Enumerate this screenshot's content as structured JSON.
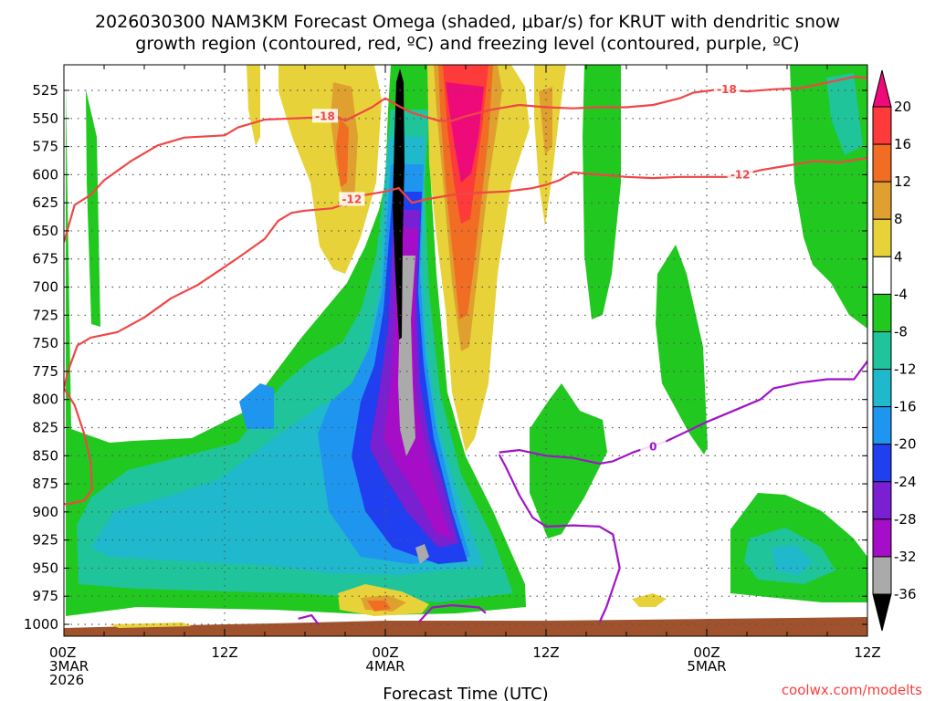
{
  "chart_data": {
    "type": "time-height cross-section (filled contour)",
    "title_lines": [
      "2026030300 NAM3KM Forecast Omega (shaded, μbar/s) for KRUT with dendritic snow",
      "growth region (contoured, red, ºC) and freezing level (contoured, purple, ºC)"
    ],
    "xlabel": "Forecast Time (UTC)",
    "x_ticks": [
      {
        "hour": 0,
        "lines": [
          "00Z",
          "3MAR",
          "2026"
        ]
      },
      {
        "hour": 12,
        "lines": [
          "12Z"
        ]
      },
      {
        "hour": 24,
        "lines": [
          "00Z",
          "4MAR"
        ]
      },
      {
        "hour": 36,
        "lines": [
          "12Z"
        ]
      },
      {
        "hour": 48,
        "lines": [
          "00Z",
          "5MAR"
        ]
      },
      {
        "hour": 60,
        "lines": [
          "12Z"
        ]
      }
    ],
    "xlim_hours": [
      0,
      60
    ],
    "y_ticks_hPa": [
      525,
      550,
      575,
      600,
      625,
      650,
      675,
      700,
      725,
      750,
      775,
      800,
      825,
      850,
      875,
      900,
      925,
      950,
      975,
      1000
    ],
    "ylim_hPa": [
      1010,
      505
    ],
    "grid": true,
    "colorbar": {
      "position": "right",
      "levels": [
        20,
        16,
        12,
        8,
        4,
        -4,
        -8,
        -12,
        -16,
        -20,
        -24,
        -28,
        -32,
        -36
      ],
      "colors": [
        "#ee0a78",
        "#ff3a3a",
        "#f06d23",
        "#e0a030",
        "#e8d23a",
        "#ffffff",
        "#21c820",
        "#20c49a",
        "#20b8cc",
        "#1e96f0",
        "#1f3ff0",
        "#7a1fd2",
        "#a50dc8",
        "#aaaaaa",
        "#000000"
      ]
    },
    "contours": [
      {
        "label": "-18",
        "color": "#f04646",
        "kind": "dendritic growth (red)",
        "points": [
          [
            0,
            660
          ],
          [
            0.8,
            627
          ],
          [
            2,
            618
          ],
          [
            3,
            605
          ],
          [
            5,
            588
          ],
          [
            7,
            574
          ],
          [
            9,
            567
          ],
          [
            12,
            565
          ],
          [
            13,
            558
          ],
          [
            15,
            551
          ],
          [
            17,
            550
          ],
          [
            19,
            549
          ],
          [
            20,
            546
          ],
          [
            21,
            552
          ],
          [
            23,
            540
          ],
          [
            24,
            532
          ],
          [
            25,
            539
          ],
          [
            26,
            545
          ],
          [
            28,
            552
          ],
          [
            29,
            552
          ],
          [
            30,
            548
          ],
          [
            32,
            542
          ],
          [
            34,
            538
          ],
          [
            36,
            540
          ],
          [
            38,
            541
          ],
          [
            40,
            540
          ],
          [
            42,
            540
          ],
          [
            44,
            538
          ],
          [
            46,
            532
          ],
          [
            47,
            527
          ],
          [
            49,
            524
          ],
          [
            51,
            526
          ],
          [
            53,
            524
          ],
          [
            55,
            523
          ],
          [
            57,
            518
          ],
          [
            59,
            513
          ],
          [
            60,
            514
          ]
        ]
      },
      {
        "label": "-12",
        "color": "#f04646",
        "kind": "dendritic growth (red)",
        "points": [
          [
            0,
            790
          ],
          [
            0.3,
            775
          ],
          [
            1,
            752
          ],
          [
            2,
            745
          ],
          [
            4,
            740
          ],
          [
            6,
            727
          ],
          [
            8,
            710
          ],
          [
            10,
            698
          ],
          [
            12,
            682
          ],
          [
            13,
            674
          ],
          [
            15,
            657
          ],
          [
            16,
            641
          ],
          [
            17,
            634
          ],
          [
            18,
            632
          ],
          [
            20,
            630
          ],
          [
            21,
            626
          ],
          [
            22,
            619
          ],
          [
            23,
            617
          ],
          [
            24,
            615
          ],
          [
            25,
            612
          ],
          [
            26,
            625
          ],
          [
            27,
            622
          ],
          [
            29,
            618
          ],
          [
            31,
            616
          ],
          [
            33,
            615
          ],
          [
            35,
            612
          ],
          [
            36,
            609
          ],
          [
            37,
            605
          ],
          [
            38,
            598
          ],
          [
            40,
            600
          ],
          [
            42,
            602
          ],
          [
            44,
            603
          ],
          [
            46,
            602
          ],
          [
            48,
            602
          ],
          [
            50,
            602
          ],
          [
            52,
            596
          ],
          [
            54,
            592
          ],
          [
            56,
            588
          ],
          [
            58,
            589
          ],
          [
            60,
            585
          ]
        ]
      },
      {
        "label": "",
        "color": "#f04646",
        "kind": "dendritic growth (red)",
        "points": [
          [
            0,
            790
          ],
          [
            0.8,
            805
          ],
          [
            1.5,
            830
          ],
          [
            2,
            855
          ],
          [
            2.1,
            880
          ],
          [
            1.5,
            890
          ],
          [
            0.3,
            893
          ],
          [
            0,
            893
          ]
        ]
      },
      {
        "label": "0",
        "color": "#a014c8",
        "kind": "freezing level (purple)",
        "points": [
          [
            32.5,
            847
          ],
          [
            34,
            845
          ],
          [
            36,
            850
          ],
          [
            38,
            852
          ],
          [
            40,
            857
          ],
          [
            41,
            855
          ],
          [
            42.5,
            847
          ],
          [
            45,
            837
          ],
          [
            48,
            820
          ],
          [
            52,
            800
          ],
          [
            53,
            790
          ],
          [
            55,
            785
          ],
          [
            57,
            782
          ],
          [
            59,
            782
          ],
          [
            60,
            766
          ]
        ]
      },
      {
        "label": "",
        "color": "#a014c8",
        "kind": "freezing level (purple)",
        "points": [
          [
            32.5,
            849
          ],
          [
            33,
            860
          ],
          [
            34,
            885
          ],
          [
            35,
            905
          ],
          [
            36,
            913
          ],
          [
            38,
            912
          ],
          [
            40,
            913
          ],
          [
            41,
            920
          ],
          [
            41.5,
            950
          ],
          [
            40.5,
            985
          ],
          [
            40,
            998
          ]
        ]
      },
      {
        "label": "",
        "color": "#a014c8",
        "kind": "freezing level (purple)",
        "points": [
          [
            17.5,
            995
          ],
          [
            18.5,
            992
          ],
          [
            19,
            1000
          ]
        ]
      },
      {
        "label": "",
        "color": "#a014c8",
        "kind": "freezing level (purple)",
        "points": [
          [
            26.5,
            998
          ],
          [
            27.5,
            985
          ],
          [
            29,
            983
          ],
          [
            31,
            985
          ],
          [
            31.5,
            990
          ]
        ]
      }
    ],
    "terrain_color": "#a0522d",
    "credit": "coolwx.com/modelts"
  }
}
